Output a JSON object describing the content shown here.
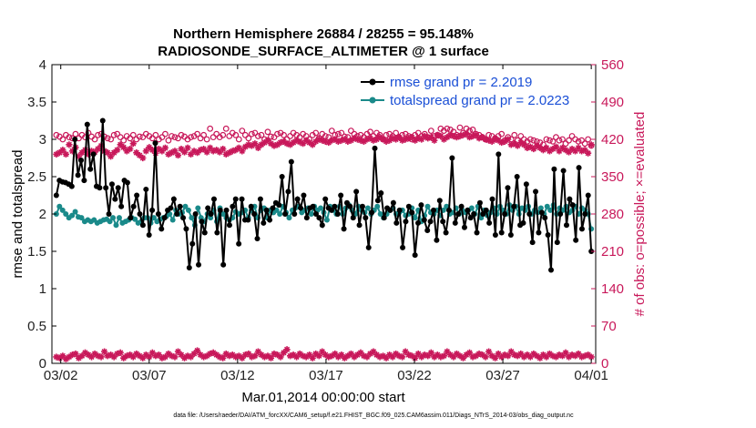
{
  "chart_data": {
    "type": "line",
    "title_line1": "Northern Hemisphere 26884 / 28255 = 95.148%",
    "title_line2": "RADIOSONDE_SURFACE_ALTIMETER @ 1 surface",
    "xlabel": "Mar.01,2014 00:00:00 start",
    "ylabel_left": "rmse and totalspread",
    "ylabel_right": "# of obs: o=possible; ×=evaluated",
    "footnote": "data file: /Users/raeder/DAI/ATM_forcXX/CAM6_setup/f.e21.FHIST_BGC.f09_025.CAM6assim.011/Diags_NTrS_2014-03/obs_diag_output.nc",
    "x_tick_labels": [
      "03/02",
      "03/07",
      "03/12",
      "03/17",
      "03/22",
      "03/27",
      "04/01"
    ],
    "x_tick_days": [
      1,
      6,
      11,
      16,
      21,
      26,
      31
    ],
    "x_range_days": [
      0.5,
      31.25
    ],
    "y_left_ticks": [
      "0",
      "0.5",
      "1",
      "1.5",
      "2",
      "2.5",
      "3",
      "3.5",
      "4"
    ],
    "y_left_lim": [
      0,
      4
    ],
    "y_right_ticks": [
      "0",
      "70",
      "140",
      "210",
      "280",
      "350",
      "420",
      "490",
      "560"
    ],
    "y_right_lim": [
      0,
      560
    ],
    "grid": false,
    "legend_position": "top-right",
    "colors": {
      "rmse": "#000000",
      "totalspread": "#1a8a8a",
      "obs": "#c8185a",
      "legend_text": "#1a4fd6"
    },
    "series": [
      {
        "name": "rmse grand pr = 2.2019",
        "axis": "left",
        "values": [
          2.25,
          2.45,
          2.43,
          2.42,
          2.4,
          2.37,
          3.0,
          2.52,
          2.72,
          2.45,
          3.2,
          2.6,
          2.8,
          2.37,
          2.35,
          3.25,
          2.35,
          2.0,
          2.4,
          2.2,
          2.35,
          2.1,
          2.45,
          2.42,
          1.95,
          2.1,
          2.25,
          2.0,
          1.85,
          2.33,
          1.72,
          2.05,
          2.95,
          2.0,
          1.8,
          1.95,
          2.05,
          2.08,
          2.2,
          2.0,
          2.1,
          1.95,
          1.8,
          1.28,
          1.6,
          2.0,
          1.32,
          1.9,
          1.75,
          2.08,
          2.0,
          2.2,
          1.75,
          2.05,
          1.32,
          2.05,
          1.85,
          2.1,
          2.2,
          1.6,
          2.2,
          1.92,
          1.92,
          2.1,
          2.0,
          1.67,
          2.2,
          1.88,
          2.05,
          1.92,
          2.08,
          2.15,
          2.12,
          2.5,
          2.0,
          2.3,
          2.7,
          2.0,
          2.2,
          2.08,
          2.25,
          1.95,
          2.08,
          2.1,
          2.0,
          1.95,
          1.85,
          2.2,
          2.08,
          2.05,
          2.1,
          2.0,
          2.25,
          1.8,
          2.15,
          2.1,
          1.95,
          2.3,
          1.85,
          2.1,
          1.95,
          1.55,
          2.02,
          2.88,
          2.18,
          2.28,
          1.95,
          2.08,
          2.05,
          2.15,
          1.88,
          2.05,
          1.55,
          1.9,
          2.1,
          2.02,
          1.45,
          1.88,
          2.12,
          1.92,
          1.78,
          1.9,
          2.05,
          1.65,
          2.18,
          1.9,
          1.75,
          2.05,
          2.75,
          1.88,
          2.0,
          2.1,
          1.82,
          2.05,
          1.95,
          2.0,
          1.75,
          2.15,
          2.0,
          2.05,
          1.88,
          2.2,
          1.72,
          2.8,
          1.75,
          2.0,
          2.35,
          1.72,
          2.1,
          2.5,
          1.85,
          1.88,
          2.4,
          2.0,
          1.62,
          2.3,
          1.75,
          2.02,
          1.95,
          1.72,
          1.25,
          2.6,
          1.62,
          2.0,
          2.58,
          1.85,
          2.2,
          2.12,
          1.65,
          2.62,
          1.8,
          2.0,
          2.25,
          1.5
        ]
      },
      {
        "name": "totalspread grand pr = 2.0223",
        "axis": "left",
        "values": [
          2.0,
          2.1,
          2.05,
          2.0,
          1.95,
          1.98,
          2.03,
          1.96,
          1.95,
          1.9,
          1.92,
          1.9,
          1.92,
          1.88,
          1.9,
          1.92,
          1.93,
          1.9,
          1.95,
          1.85,
          1.95,
          1.88,
          1.9,
          1.92,
          1.95,
          1.93,
          1.88,
          1.9,
          1.95,
          1.95,
          1.88,
          1.95,
          1.9,
          1.93,
          1.95,
          1.97,
          2.0,
          1.92,
          2.05,
          2.0,
          2.02,
          2.1,
          2.05,
          1.95,
          1.85,
          2.08,
          1.95,
          1.9,
          2.0,
          1.95,
          2.05,
          1.9,
          2.08,
          2.0,
          1.95,
          1.92,
          1.95,
          2.03,
          2.0,
          2.02,
          2.05,
          1.95,
          2.05,
          2.1,
          1.95,
          2.05,
          2.08,
          1.95,
          2.05,
          2.02,
          2.05,
          2.0,
          2.1,
          2.02,
          1.95,
          2.05,
          2.08,
          2.1,
          2.02,
          2.05,
          2.08,
          2.0,
          2.1,
          2.05,
          2.08,
          2.02,
          1.92,
          2.1,
          2.05,
          2.0,
          2.1,
          2.0,
          2.08,
          2.12,
          2.05,
          2.0,
          2.1,
          2.05,
          2.02,
          2.08,
          2.0,
          2.05,
          2.1,
          2.0,
          1.95,
          2.0,
          2.05,
          2.08,
          2.0,
          2.02,
          2.05,
          1.98,
          2.0,
          2.08,
          1.95,
          2.05,
          1.9,
          1.98,
          2.1,
          2.02,
          2.0,
          2.05,
          1.98,
          2.05,
          2.1,
          2.0,
          2.02,
          2.08,
          2.0,
          2.05,
          2.02,
          2.05,
          2.08,
          2.0,
          2.1,
          1.95,
          2.05,
          1.98,
          2.02,
          2.08,
          2.0,
          2.1,
          2.05,
          2.0,
          2.12,
          2.05,
          2.1,
          2.0,
          2.08,
          2.05,
          2.1,
          2.0,
          2.05,
          2.02,
          2.08,
          2.0,
          2.1,
          2.05,
          2.12,
          2.0,
          2.08,
          2.05,
          2.1,
          2.02,
          2.05,
          2.1,
          2.0,
          2.08,
          2.05,
          2.0,
          1.8
        ]
      },
      {
        "name": "obs possible",
        "axis": "right",
        "marker": "o",
        "values": [
          428,
          425,
          420,
          428,
          424,
          422,
          430,
          422,
          428,
          424,
          432,
          425,
          420,
          428,
          430,
          425,
          422,
          420,
          428,
          430,
          424,
          418,
          426,
          422,
          428,
          420,
          425,
          424,
          430,
          426,
          422,
          428,
          420,
          424,
          430,
          418,
          426,
          424,
          422,
          428,
          425,
          420,
          424,
          426,
          430,
          422,
          428,
          420,
          440,
          424,
          430,
          424,
          428,
          440,
          426,
          432,
          428,
          420,
          436,
          428,
          422,
          430,
          432,
          426,
          428,
          420,
          434,
          425,
          424,
          430,
          432,
          428,
          420,
          426,
          432,
          428,
          424,
          430,
          426,
          420,
          428,
          432,
          422,
          430,
          426,
          424,
          436,
          428,
          430,
          432,
          425,
          424,
          436,
          430,
          426,
          428,
          424,
          430,
          434,
          426,
          432,
          428,
          420,
          428,
          430,
          426,
          432,
          424,
          428,
          430,
          426,
          420,
          428,
          432,
          426,
          430,
          424,
          436,
          426,
          428,
          440,
          436,
          440,
          438,
          434,
          428,
          442,
          432,
          440,
          436,
          438,
          430,
          428,
          424,
          420,
          428,
          426,
          422,
          426,
          430,
          418,
          424,
          420,
          428,
          418,
          426,
          420,
          416,
          420,
          418,
          416,
          414,
          410,
          420,
          418,
          416,
          424,
          418,
          420,
          412,
          418,
          426,
          420,
          416,
          418,
          412,
          420,
          408
        ]
      },
      {
        "name": "obs evaluated",
        "axis": "right",
        "marker": "*",
        "values": [
          392,
          395,
          400,
          392,
          410,
          398,
          405,
          388,
          395,
          400,
          392,
          398,
          396,
          402,
          408,
          398,
          395,
          388,
          395,
          400,
          410,
          405,
          398,
          402,
          412,
          395,
          390,
          385,
          398,
          405,
          400,
          394,
          402,
          398,
          404,
          392,
          395,
          398,
          390,
          402,
          396,
          404,
          392,
          398,
          395,
          400,
          402,
          396,
          404,
          398,
          400,
          396,
          402,
          392,
          395,
          398,
          400,
          404,
          398,
          406,
          410,
          408,
          412,
          404,
          410,
          414,
          418,
          412,
          408,
          410,
          414,
          416,
          412,
          410,
          414,
          418,
          415,
          412,
          418,
          414,
          410,
          416,
          420,
          418,
          416,
          414,
          418,
          420,
          416,
          418,
          420,
          416,
          418,
          422,
          420,
          418,
          416,
          420,
          422,
          418,
          420,
          424,
          420,
          416,
          418,
          422,
          420,
          424,
          418,
          420,
          422,
          424,
          418,
          422,
          420,
          426,
          422,
          424,
          418,
          428,
          426,
          420,
          424,
          428,
          426,
          424,
          426,
          428,
          430,
          424,
          426,
          428,
          422,
          424,
          420,
          418,
          416,
          420,
          418,
          414,
          416,
          420,
          410,
          412,
          408,
          414,
          410,
          404,
          406,
          402,
          408,
          404,
          400,
          404,
          398,
          402,
          406,
          398,
          404,
          400,
          396,
          402,
          398,
          404,
          398,
          400,
          394,
          410
        ]
      },
      {
        "name": "obs near zero",
        "axis": "right",
        "marker": "*",
        "values": [
          12,
          10,
          14,
          8,
          12,
          16,
          18,
          10,
          14,
          20,
          16,
          12,
          18,
          14,
          12,
          22,
          14,
          16,
          12,
          18,
          20,
          10,
          14,
          16,
          12,
          18,
          14,
          10,
          16,
          12,
          20,
          14,
          16,
          10,
          12,
          18,
          14,
          12,
          22,
          16,
          10,
          14,
          12,
          18,
          24,
          16,
          12,
          14,
          18,
          20,
          16,
          12,
          10,
          18,
          14,
          16,
          12,
          14,
          10,
          16,
          18,
          12,
          14,
          22,
          16,
          12,
          14,
          10,
          18,
          16,
          12,
          20,
          26,
          14,
          16,
          12,
          18,
          14,
          12,
          16,
          10,
          18,
          14,
          22,
          16,
          12,
          14,
          18,
          12,
          16,
          10,
          14,
          18,
          12,
          16,
          20,
          14,
          12,
          18,
          22,
          16,
          12,
          14,
          10,
          16,
          12,
          18,
          14,
          12,
          22,
          16,
          14,
          10,
          18,
          12,
          16,
          14,
          20,
          12,
          16,
          12,
          14,
          22,
          16,
          12,
          18,
          14,
          10,
          16,
          20,
          12,
          14,
          18,
          16,
          12,
          22,
          14,
          10,
          18,
          12,
          16,
          14,
          22,
          16,
          14,
          18,
          12,
          16,
          12,
          18,
          14,
          10,
          16,
          12,
          18,
          14,
          12,
          16,
          14,
          20,
          12,
          16,
          14,
          18,
          12,
          14,
          16,
          12
        ]
      }
    ]
  }
}
